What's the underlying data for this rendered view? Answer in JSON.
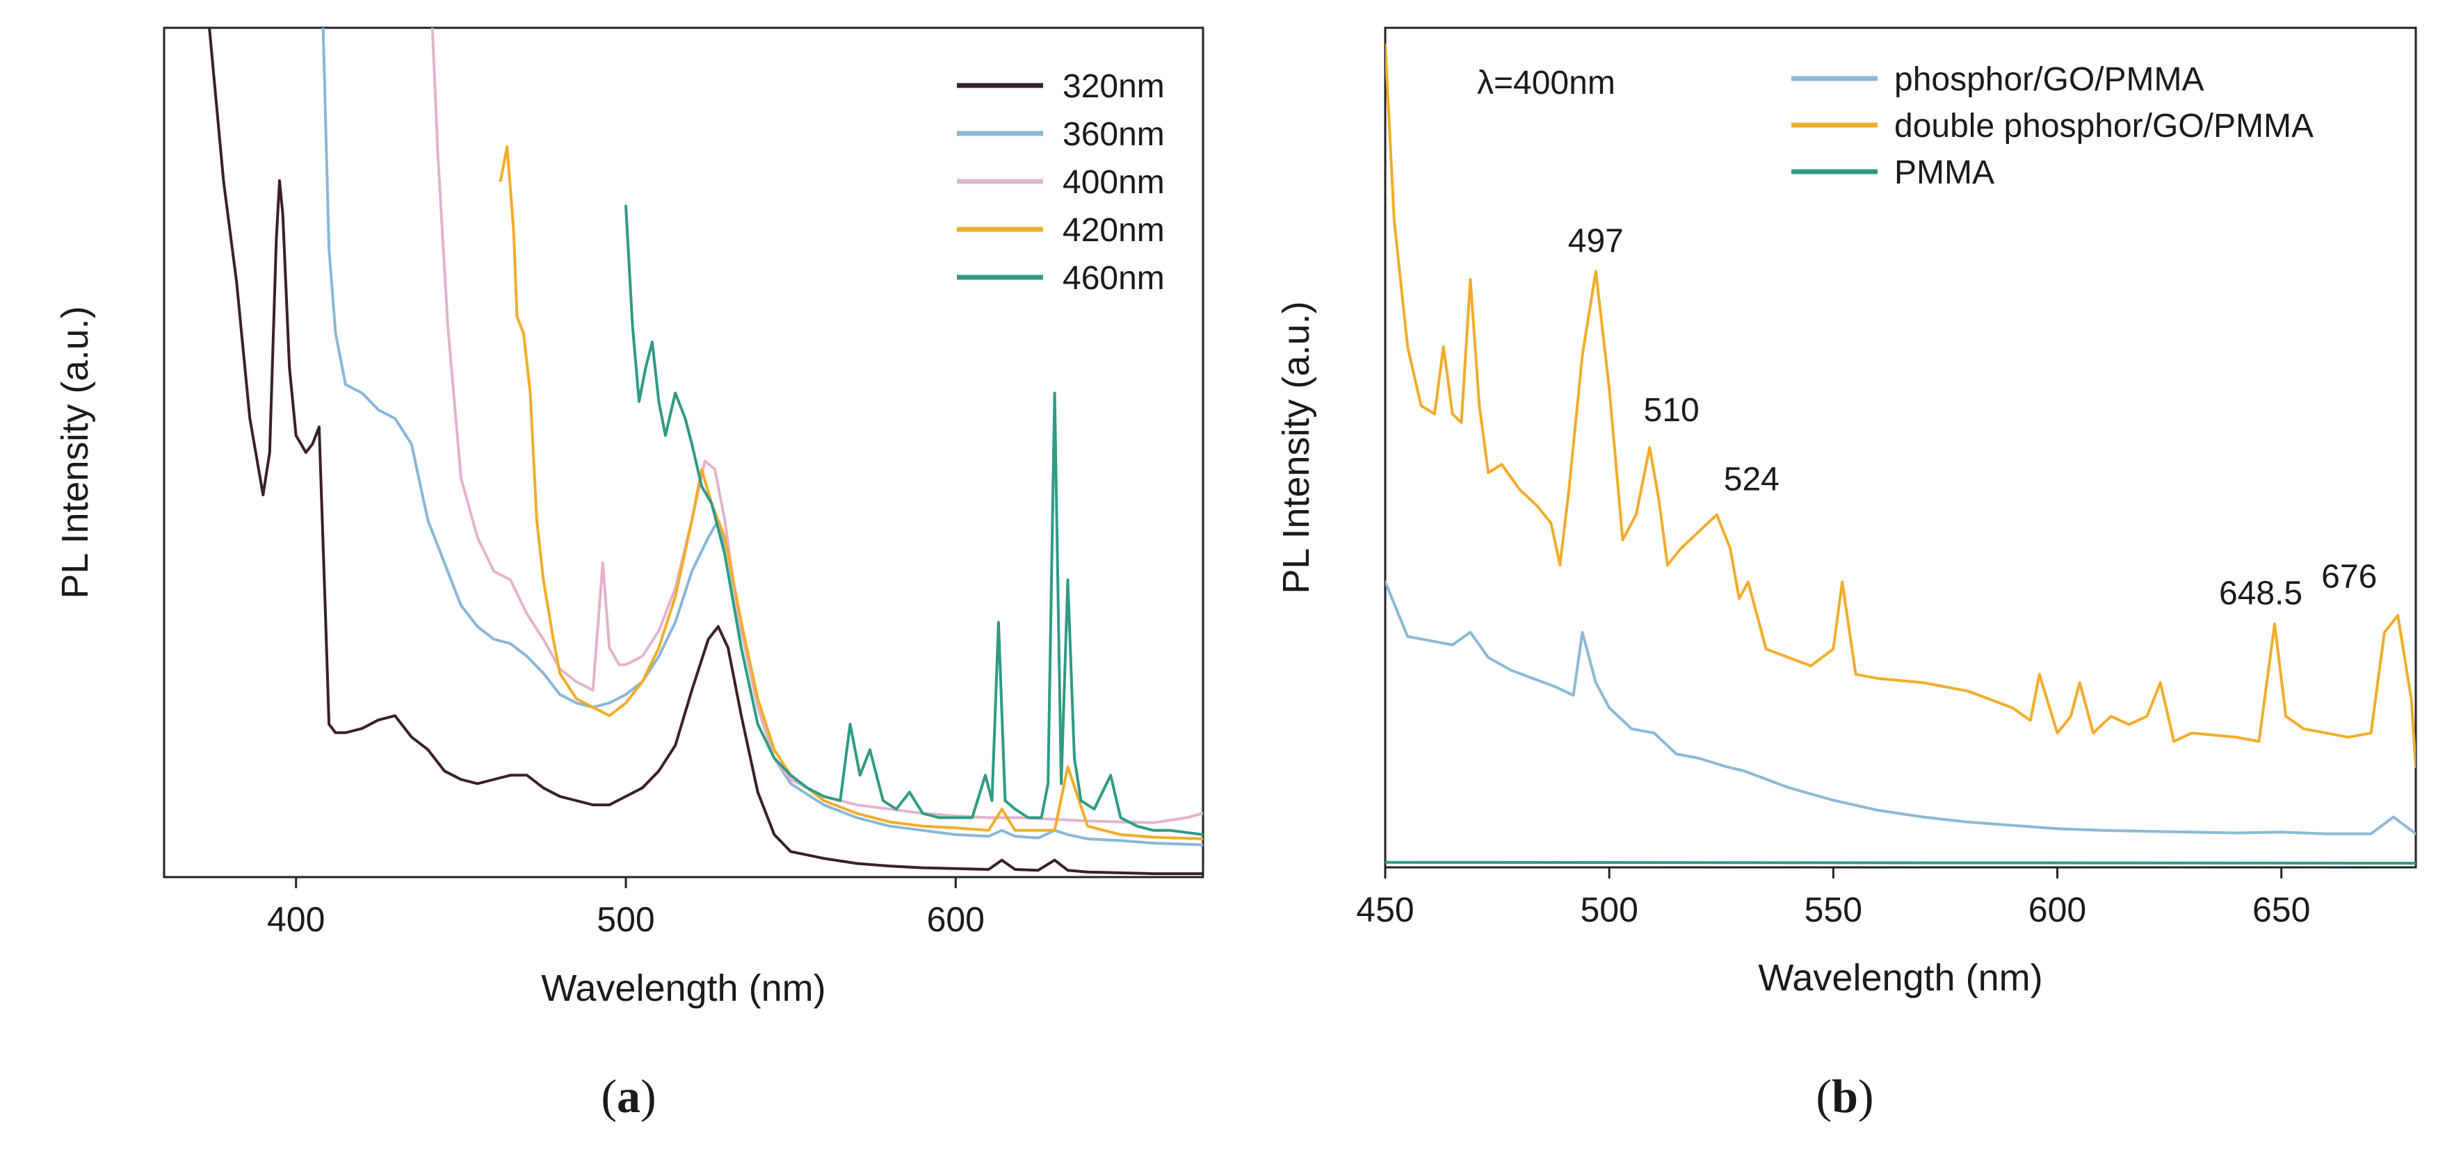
{
  "chart_data": [
    {
      "panel": "a",
      "type": "line",
      "title": "",
      "xlabel": "Wavelength (nm)",
      "ylabel": "PL Intensity (a.u.)",
      "xlim": [
        360,
        675
      ],
      "ylim": [
        0,
        100
      ],
      "xticks": [
        400,
        500,
        600
      ],
      "yticks": [],
      "legend": "top-right",
      "series": [
        {
          "name": "320nm",
          "color": "#3a1f2e",
          "x": [
            373,
            378,
            382,
            386,
            390,
            392,
            394,
            395,
            396,
            398,
            400,
            403,
            405,
            407,
            409,
            410,
            412,
            415,
            420,
            425,
            430,
            435,
            440,
            445,
            450,
            455,
            460,
            465,
            470,
            475,
            480,
            485,
            490,
            495,
            500,
            505,
            510,
            515,
            520,
            525,
            528,
            531,
            535,
            540,
            545,
            550,
            560,
            570,
            580,
            590,
            600,
            610,
            614,
            618,
            625,
            630,
            634,
            640,
            650,
            660,
            675
          ],
          "y": [
            103,
            82,
            70,
            54,
            45,
            50,
            75,
            82,
            78,
            60,
            52,
            50,
            51,
            53,
            30,
            18,
            17,
            17,
            17.5,
            18.5,
            19,
            16.5,
            15,
            12.5,
            11.5,
            11,
            11.5,
            12,
            12,
            10.5,
            9.5,
            9,
            8.5,
            8.5,
            9.5,
            10.5,
            12.5,
            15.5,
            22,
            28,
            29.5,
            27,
            19,
            10,
            5,
            3,
            2.2,
            1.6,
            1.3,
            1.1,
            1,
            0.9,
            2,
            0.9,
            0.8,
            2,
            0.8,
            0.6,
            0.5,
            0.4,
            0.4
          ]
        },
        {
          "name": "360nm",
          "color": "#88b7d8",
          "x": [
            408,
            410,
            412,
            415,
            420,
            425,
            430,
            435,
            440,
            445,
            450,
            455,
            460,
            465,
            470,
            475,
            480,
            485,
            490,
            495,
            500,
            505,
            510,
            515,
            520,
            525,
            528,
            531,
            535,
            540,
            545,
            550,
            560,
            570,
            580,
            590,
            600,
            610,
            614,
            618,
            625,
            630,
            634,
            640,
            650,
            660,
            675
          ],
          "y": [
            103,
            74,
            64,
            58,
            57,
            55,
            54,
            51,
            42,
            37,
            32,
            29.5,
            28,
            27.5,
            26,
            24,
            21.5,
            20.5,
            20,
            20.5,
            21.5,
            23,
            26,
            30,
            36,
            40,
            42,
            38,
            29,
            20,
            14,
            11,
            8.5,
            7,
            6,
            5.5,
            5,
            4.8,
            5.5,
            4.8,
            4.6,
            5.5,
            5,
            4.5,
            4.3,
            4,
            3.8
          ]
        },
        {
          "name": "400nm",
          "color": "#e3b3cc",
          "x": [
            441,
            443,
            446,
            450,
            455,
            460,
            465,
            470,
            475,
            480,
            485,
            490,
            493,
            495,
            498,
            500,
            505,
            510,
            515,
            520,
            524,
            527,
            530,
            534,
            540,
            545,
            550,
            560,
            570,
            580,
            590,
            600,
            610,
            620,
            630,
            640,
            650,
            660,
            670,
            675
          ],
          "y": [
            103,
            85,
            65,
            47,
            40,
            36,
            35,
            31,
            28,
            24.5,
            23,
            22,
            37,
            27,
            25,
            25,
            26,
            29,
            34,
            42,
            49,
            48,
            42,
            31,
            20,
            14,
            11.5,
            9.5,
            8.5,
            8,
            7.5,
            7.2,
            7,
            7,
            6.8,
            6.6,
            6.5,
            6.4,
            7,
            7.5
          ]
        },
        {
          "name": "420nm",
          "color": "#f2ac2a",
          "x": [
            462,
            464,
            466,
            467,
            469,
            471,
            473,
            475,
            478,
            480,
            485,
            490,
            495,
            500,
            505,
            510,
            515,
            520,
            523,
            526,
            530,
            535,
            540,
            545,
            550,
            560,
            570,
            580,
            590,
            600,
            610,
            614,
            618,
            625,
            630,
            634,
            640,
            650,
            660,
            675
          ],
          "y": [
            82,
            86,
            76,
            66,
            64,
            57,
            42,
            35,
            28,
            24,
            21,
            20,
            19,
            20.5,
            23,
            27,
            33,
            42,
            48,
            44,
            40,
            30,
            21,
            15,
            12,
            9,
            7.5,
            6.5,
            6,
            5.8,
            5.5,
            8,
            5.5,
            5.5,
            5.5,
            13,
            6,
            5,
            4.7,
            4.5
          ]
        },
        {
          "name": "460nm",
          "color": "#2f9b84",
          "x": [
            500,
            502,
            504,
            506,
            508,
            510,
            512,
            515,
            518,
            520,
            523,
            526,
            530,
            535,
            540,
            545,
            550,
            555,
            560,
            565,
            568,
            571,
            574,
            578,
            582,
            586,
            590,
            595,
            600,
            605,
            609,
            611,
            613,
            615,
            618,
            622,
            626,
            628,
            630,
            632,
            634,
            636,
            638,
            642,
            647,
            650,
            655,
            660,
            665,
            675
          ],
          "y": [
            79,
            65,
            56,
            60,
            63,
            56,
            52,
            57,
            54,
            51,
            46,
            44,
            38,
            27,
            18,
            14,
            12,
            10.5,
            9.5,
            9,
            18,
            12,
            15,
            9,
            8,
            10,
            7.5,
            7,
            7,
            7,
            12,
            9,
            30,
            9,
            8,
            7,
            7,
            11,
            57,
            11,
            35,
            14,
            9,
            8,
            12,
            7,
            6,
            5.5,
            5.5,
            5
          ]
        }
      ]
    },
    {
      "panel": "b",
      "type": "line",
      "title": "",
      "xlabel": "Wavelength (nm)",
      "ylabel": "PL Intensity (a.u.)",
      "xlim": [
        450,
        680
      ],
      "ylim": [
        0,
        100
      ],
      "xticks": [
        450,
        500,
        550,
        600,
        650
      ],
      "yticks": [],
      "legend": "top-right",
      "series": [
        {
          "name": "phosphor/GO/PMMA",
          "color": "#8bb9d6",
          "x": [
            450,
            455,
            460,
            465,
            469,
            473,
            478,
            483,
            488,
            492,
            494,
            497,
            500,
            505,
            510,
            515,
            520,
            526,
            530,
            540,
            550,
            560,
            570,
            580,
            590,
            600,
            610,
            620,
            630,
            640,
            650,
            660,
            670,
            675,
            680
          ],
          "y": [
            34,
            27.5,
            27,
            26.5,
            28,
            25,
            23.5,
            22.5,
            21.5,
            20.5,
            28,
            22,
            19,
            16.5,
            16,
            13.5,
            13,
            12,
            11.5,
            9.5,
            8,
            6.8,
            6,
            5.4,
            5,
            4.6,
            4.4,
            4.3,
            4.2,
            4.1,
            4.2,
            4,
            4,
            6,
            4
          ]
        },
        {
          "name": "double phosphor/GO/PMMA",
          "color": "#f2ac2a",
          "x": [
            450,
            452,
            455,
            458,
            461,
            463,
            465,
            467,
            469,
            471,
            473,
            476,
            480,
            484,
            487,
            489,
            491,
            494,
            497,
            500,
            503,
            506,
            509,
            511,
            513,
            516,
            520,
            524,
            527,
            529,
            531,
            535,
            540,
            545,
            550,
            552,
            555,
            560,
            570,
            580,
            590,
            594,
            596,
            600,
            603,
            605,
            608,
            612,
            616,
            620,
            623,
            626,
            630,
            640,
            645,
            648.5,
            651,
            655,
            660,
            665,
            670,
            673,
            676,
            679,
            680
          ],
          "y": [
            98,
            77,
            62,
            55,
            54,
            62,
            54,
            53,
            70,
            55,
            47,
            48,
            45,
            43,
            41,
            36,
            45,
            61,
            71,
            57,
            39,
            42,
            50,
            44,
            36,
            38,
            40,
            42,
            38,
            32,
            34,
            26,
            25,
            24,
            26,
            34,
            23,
            22.5,
            22,
            21,
            19,
            17.5,
            23,
            16,
            18,
            22,
            16,
            18,
            17,
            18,
            22,
            15,
            16,
            15.5,
            15,
            29,
            18,
            16.5,
            16,
            15.5,
            16,
            28,
            30,
            20,
            12
          ]
        },
        {
          "name": "PMMA",
          "color": "#2f9b84",
          "x": [
            450,
            680
          ],
          "y": [
            0.6,
            0.5
          ]
        }
      ],
      "annotations": [
        "497",
        "510",
        "524",
        "648.5",
        "676"
      ],
      "inset_text": "λ=400nm"
    }
  ],
  "panel_labels": {
    "a": {
      "open": "(",
      "letter": "a",
      "close": ")"
    },
    "b": {
      "open": "(",
      "letter": "b",
      "close": ")"
    }
  }
}
